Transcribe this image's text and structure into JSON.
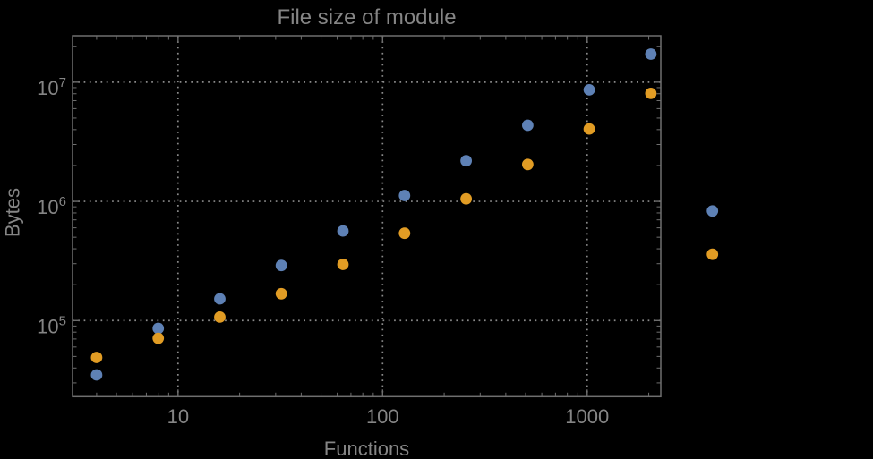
{
  "title": "File size of module",
  "colors": {
    "background": "#000000",
    "text": "#858585",
    "frame": "#6f6f6f",
    "grid": "#8a8a8a",
    "series_blue": "#5e81b5",
    "series_orange": "#e19c24"
  },
  "chart_data": {
    "type": "scatter",
    "title": "File size of module",
    "xlabel": "Functions",
    "ylabel": "Bytes",
    "x_scale": "log",
    "y_scale": "log",
    "xlim": [
      3.05,
      2290
    ],
    "ylim": [
      23000,
      24500000
    ],
    "grid": "dotted gray lines at decade ticks only",
    "legend": "none",
    "x": [
      4,
      8,
      16,
      32,
      64,
      128,
      256,
      512,
      1024,
      2048,
      4096
    ],
    "series": [
      {
        "name": "blue",
        "color": "#5e81b5",
        "values": [
          35000,
          86000,
          152000,
          290000,
          565000,
          1120000,
          2190000,
          4350000,
          8630000,
          17200000,
          830000
        ]
      },
      {
        "name": "orange",
        "color": "#e19c24",
        "values": [
          49000,
          71000,
          107000,
          168000,
          296000,
          540000,
          1050000,
          2040000,
          4050000,
          8050000,
          360000
        ]
      }
    ],
    "x_ticks": [
      {
        "value": 10,
        "label": "10"
      },
      {
        "value": 100,
        "label": "100"
      },
      {
        "value": 1000,
        "label": "1000"
      }
    ],
    "y_ticks": [
      {
        "value": 100000,
        "label_base": "10",
        "label_exp": "5"
      },
      {
        "value": 1000000,
        "label_base": "10",
        "label_exp": "6"
      },
      {
        "value": 10000000,
        "label_base": "10",
        "label_exp": "7"
      }
    ],
    "note": "the two points at x=4096 are drawn outside the right edge of the plot frame"
  }
}
